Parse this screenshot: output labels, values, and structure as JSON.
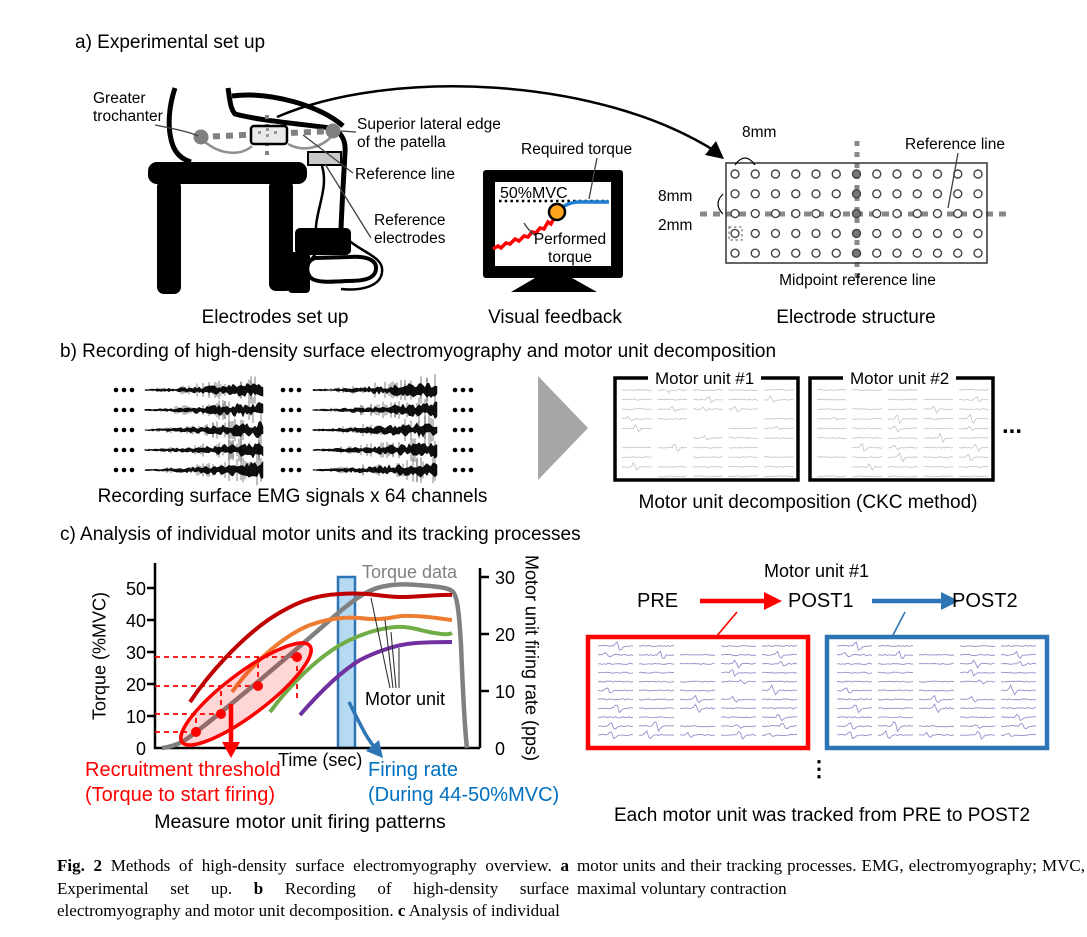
{
  "panel_a": {
    "heading": "a) Experimental set up",
    "labels": {
      "greater_trochanter_1": "Greater",
      "greater_trochanter_2": "trochanter",
      "superior_lateral_1": "Superior lateral edge",
      "superior_lateral_2": "of the patella",
      "reference_line": "Reference line",
      "reference_electrodes_1": "Reference",
      "reference_electrodes_2": "electrodes"
    },
    "monitor": {
      "mvc_level": "50%MVC",
      "required_torque": "Required torque",
      "performed_torque_1": "Performed",
      "performed_torque_2": "torque"
    },
    "grid": {
      "top_spacing": "8mm",
      "left_spacing": "8mm",
      "electrode_size": "2mm",
      "reference_line": "Reference line",
      "midpoint": "Midpoint reference line"
    },
    "captions": {
      "electrodes": "Electrodes set up",
      "visual": "Visual feedback",
      "structure": "Electrode structure"
    }
  },
  "panel_b": {
    "heading": "b) Recording of high-density surface electromyography and motor unit decomposition",
    "emg_caption": "Recording surface EMG signals x 64 channels",
    "motor_unit_1": "Motor unit #1",
    "motor_unit_2": "Motor unit #2",
    "ellipsis": "...",
    "decomp_caption": "Motor unit decomposition (CKC method)"
  },
  "panel_c": {
    "heading": "c) Analysis of individual motor units and its tracking processes",
    "chart": {
      "torque_data_label": "Torque data",
      "motor_unit_label": "Motor unit",
      "x_axis": "Time (sec)",
      "left_axis": "Torque (%MVC)",
      "right_axis": "Motor unit firing rate (pps)",
      "left_ticks": [
        "50",
        "40",
        "30",
        "20",
        "10",
        "0"
      ],
      "right_ticks": [
        "30",
        "20",
        "10",
        "0"
      ],
      "recruitment_1": "Recruitment threshold",
      "recruitment_2": "(Torque to start firing)",
      "firing_1": "Firing rate",
      "firing_2": "(During 44-50%MVC)",
      "caption": "Measure motor unit firing patterns"
    },
    "tracking": {
      "title": "Motor unit #1",
      "pre": "PRE",
      "post1": "POST1",
      "post2": "POST2",
      "dots": "⋮",
      "caption": "Each motor unit was tracked from PRE to POST2"
    }
  },
  "figure_caption": {
    "left": {
      "fig": "Fig. 2",
      "t1": "  Methods of high-density surface electromyography overview. ",
      "a": "a",
      "t2": " Experimental set up. ",
      "b": "b",
      "t3": " Recording of high-density surface electromyography and motor unit decomposition. ",
      "c": "c",
      "t4": " Analysis of individual"
    },
    "right": "motor units and their tracking processes. EMG, electromyography; MVC, maximal voluntary contraction"
  },
  "colors": {
    "accent_red": "#FF0000",
    "dark_red_curve": "#C00000",
    "orange_curve": "#ED7D31",
    "green_curve": "#70AD47",
    "purple_curve": "#7030A0",
    "torque_gray": "#808080",
    "blue_accent": "#2E75B6",
    "blue_text": "#0070C0",
    "light_blue_band": "#A8D4F0",
    "marker_orange": "#FFA41C"
  },
  "chart_data": {
    "type": "line",
    "xlabel": "Time (sec)",
    "ylabel_left": "Torque (%MVC)",
    "ylabel_right": "Motor unit firing rate (pps)",
    "ylim_left": [
      0,
      50
    ],
    "ylim_right": [
      0,
      30
    ],
    "grid": false,
    "series": [
      {
        "name": "Torque data",
        "axis": "left",
        "color": "#808080",
        "x": [
          0,
          1,
          2,
          3,
          4,
          5,
          6,
          7,
          8,
          9,
          10,
          11,
          12,
          12.6,
          13
        ],
        "y": [
          0,
          2,
          5,
          10.5,
          16,
          22,
          28,
          34,
          40,
          46,
          50.5,
          50,
          50.5,
          50,
          0
        ]
      },
      {
        "name": "Motor unit 1 firing rate",
        "axis": "right",
        "color": "#C00000",
        "x": [
          1.9,
          3,
          4,
          5,
          6,
          7,
          8,
          9,
          10,
          11,
          12
        ],
        "y": [
          8,
          12,
          16,
          20,
          23,
          25,
          26,
          26,
          26.5,
          26,
          26
        ]
      },
      {
        "name": "Motor unit 2 firing rate",
        "axis": "right",
        "color": "#ED7D31",
        "x": [
          2.9,
          4,
          5,
          6,
          7,
          8,
          9,
          10,
          11,
          12
        ],
        "y": [
          7,
          11,
          15,
          18,
          20.5,
          22,
          22.5,
          23,
          22.5,
          22.5
        ]
      },
      {
        "name": "Motor unit 3 firing rate",
        "axis": "right",
        "color": "#70AD47",
        "x": [
          4.2,
          5,
          6,
          7,
          8,
          9,
          10,
          11,
          12
        ],
        "y": [
          6,
          9,
          12.5,
          15.5,
          18,
          20,
          21,
          20.5,
          20
        ]
      },
      {
        "name": "Motor unit 4 firing rate",
        "axis": "right",
        "color": "#7030A0",
        "x": [
          5.2,
          6,
          7,
          8,
          9,
          10,
          11,
          12
        ],
        "y": [
          5.5,
          9,
          12.5,
          15.5,
          17.5,
          18.5,
          18.5,
          18.5
        ]
      }
    ],
    "annotations": {
      "recruitment_thresholds_pct_mvc": [
        5,
        10.5,
        19.5,
        28.5
      ],
      "target_level": "50%MVC",
      "firing_rate_window": "During 44-50%MVC"
    }
  }
}
